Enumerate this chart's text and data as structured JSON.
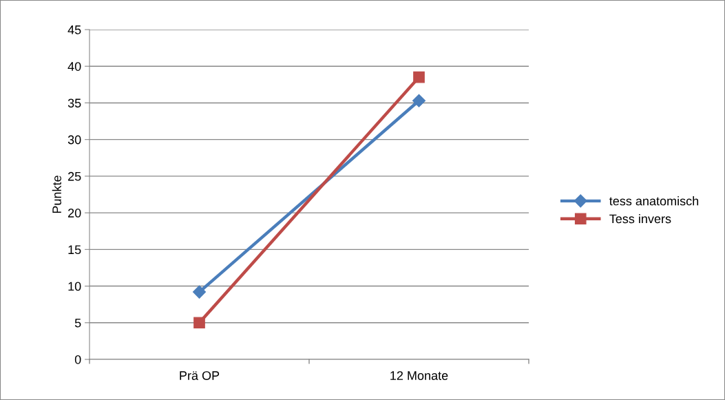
{
  "chart_data": {
    "type": "line",
    "ylabel": "Punkte",
    "categories": [
      "Prä OP",
      "12 Monate"
    ],
    "series": [
      {
        "name": "tess anatomisch",
        "color": "#4a7ebb",
        "marker": "diamond",
        "values": [
          9.2,
          35.3
        ]
      },
      {
        "name": "Tess invers",
        "color": "#be4b48",
        "marker": "square",
        "values": [
          5.0,
          38.5
        ]
      }
    ],
    "ylim": [
      0,
      45
    ],
    "yticks": [
      0,
      5,
      10,
      15,
      20,
      25,
      30,
      35,
      40,
      45
    ],
    "grid": "y",
    "legend": "right",
    "line_style": "solid"
  }
}
